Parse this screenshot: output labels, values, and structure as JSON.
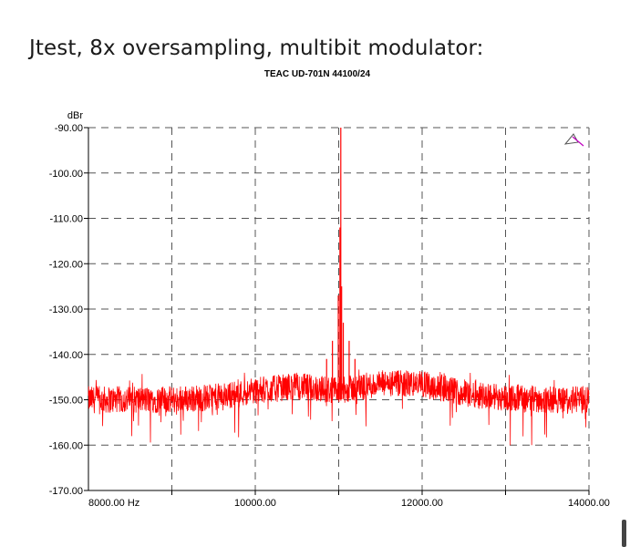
{
  "page": {
    "heading": "Jtest, 8x oversampling, multibit modulator:"
  },
  "chart_data": {
    "type": "line",
    "title": "TEAC UD-701N 44100/24",
    "ylabel": "dBr",
    "xlabel": "",
    "xlim": [
      8000,
      14000
    ],
    "ylim": [
      -170,
      -90
    ],
    "grid": true,
    "y_ticks": [
      {
        "value": -90,
        "label": "-90.00"
      },
      {
        "value": -100,
        "label": "-100.00"
      },
      {
        "value": -110,
        "label": "-110.00"
      },
      {
        "value": -120,
        "label": "-120.00"
      },
      {
        "value": -130,
        "label": "-130.00"
      },
      {
        "value": -140,
        "label": "-140.00"
      },
      {
        "value": -150,
        "label": "-150.00"
      },
      {
        "value": -160,
        "label": "-160.00"
      },
      {
        "value": -170,
        "label": "-170.00"
      }
    ],
    "x_ticks": [
      {
        "value": 8000,
        "label": "8000.00 Hz"
      },
      {
        "value": 10000,
        "label": "10000.00"
      },
      {
        "value": 12000,
        "label": "12000.00"
      },
      {
        "value": 14000,
        "label": "14000.00"
      }
    ],
    "x_minor_gridlines": [
      9000,
      11000,
      13000
    ],
    "series": [
      {
        "color": "#ff0000",
        "noise_floor": {
          "x": [
            8000,
            9000,
            9500,
            10000,
            10500,
            11000,
            11500,
            12000,
            12500,
            13000,
            13500,
            14000
          ],
          "y": [
            -150,
            -150,
            -149.5,
            -148,
            -147,
            -148,
            -146.5,
            -146.5,
            -148.5,
            -149.5,
            -150,
            -150
          ]
        },
        "peaks": [
          {
            "x": 11025,
            "y": -90
          },
          {
            "x": 11015,
            "y": -112
          },
          {
            "x": 11035,
            "y": -125
          },
          {
            "x": 10995,
            "y": -127
          },
          {
            "x": 11055,
            "y": -133
          },
          {
            "x": 10925,
            "y": -137
          },
          {
            "x": 11125,
            "y": -137
          },
          {
            "x": 10855,
            "y": -141
          },
          {
            "x": 11195,
            "y": -141
          }
        ]
      }
    ]
  }
}
